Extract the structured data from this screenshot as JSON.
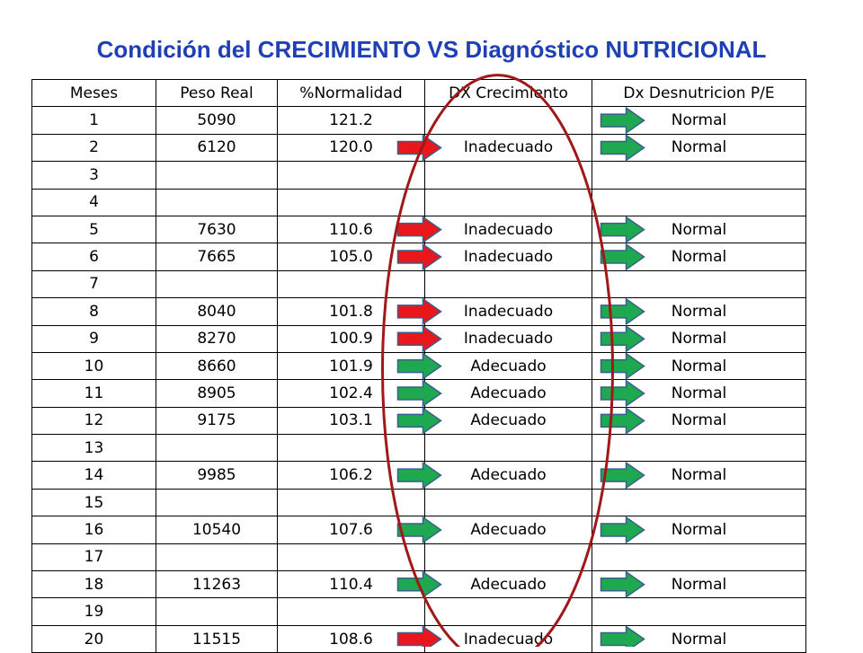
{
  "title": "Condición del CRECIMIENTO VS Diagnóstico NUTRICIONAL",
  "table": {
    "headers": [
      "Meses",
      "Peso Real",
      "%Normalidad",
      "DX Crecimiento",
      "Dx Desnutricion P/E"
    ],
    "rows": [
      {
        "mes": "1",
        "peso": "5090",
        "normalidad": "121.2",
        "dx_crecimiento": "",
        "dx_desnutricion": "Normal",
        "growth_arrow": "",
        "nutri_arrow": "green"
      },
      {
        "mes": "2",
        "peso": "6120",
        "normalidad": "120.0",
        "dx_crecimiento": "Inadecuado",
        "dx_desnutricion": "Normal",
        "growth_arrow": "red",
        "nutri_arrow": "green"
      },
      {
        "mes": "3",
        "peso": "",
        "normalidad": "",
        "dx_crecimiento": "",
        "dx_desnutricion": "",
        "growth_arrow": "",
        "nutri_arrow": ""
      },
      {
        "mes": "4",
        "peso": "",
        "normalidad": "",
        "dx_crecimiento": "",
        "dx_desnutricion": "",
        "growth_arrow": "",
        "nutri_arrow": ""
      },
      {
        "mes": "5",
        "peso": "7630",
        "normalidad": "110.6",
        "dx_crecimiento": "Inadecuado",
        "dx_desnutricion": "Normal",
        "growth_arrow": "red",
        "nutri_arrow": "green"
      },
      {
        "mes": "6",
        "peso": "7665",
        "normalidad": "105.0",
        "dx_crecimiento": "Inadecuado",
        "dx_desnutricion": "Normal",
        "growth_arrow": "red",
        "nutri_arrow": "green"
      },
      {
        "mes": "7",
        "peso": "",
        "normalidad": "",
        "dx_crecimiento": "",
        "dx_desnutricion": "",
        "growth_arrow": "",
        "nutri_arrow": ""
      },
      {
        "mes": "8",
        "peso": "8040",
        "normalidad": "101.8",
        "dx_crecimiento": "Inadecuado",
        "dx_desnutricion": "Normal",
        "growth_arrow": "red",
        "nutri_arrow": "green"
      },
      {
        "mes": "9",
        "peso": "8270",
        "normalidad": "100.9",
        "dx_crecimiento": "Inadecuado",
        "dx_desnutricion": "Normal",
        "growth_arrow": "red",
        "nutri_arrow": "green"
      },
      {
        "mes": "10",
        "peso": "8660",
        "normalidad": "101.9",
        "dx_crecimiento": "Adecuado",
        "dx_desnutricion": "Normal",
        "growth_arrow": "green",
        "nutri_arrow": "green"
      },
      {
        "mes": "11",
        "peso": "8905",
        "normalidad": "102.4",
        "dx_crecimiento": "Adecuado",
        "dx_desnutricion": "Normal",
        "growth_arrow": "green",
        "nutri_arrow": "green"
      },
      {
        "mes": "12",
        "peso": "9175",
        "normalidad": "103.1",
        "dx_crecimiento": "Adecuado",
        "dx_desnutricion": "Normal",
        "growth_arrow": "green",
        "nutri_arrow": "green"
      },
      {
        "mes": "13",
        "peso": "",
        "normalidad": "",
        "dx_crecimiento": "",
        "dx_desnutricion": "",
        "growth_arrow": "",
        "nutri_arrow": ""
      },
      {
        "mes": "14",
        "peso": "9985",
        "normalidad": "106.2",
        "dx_crecimiento": "Adecuado",
        "dx_desnutricion": "Normal",
        "growth_arrow": "green",
        "nutri_arrow": "green"
      },
      {
        "mes": "15",
        "peso": "",
        "normalidad": "",
        "dx_crecimiento": "",
        "dx_desnutricion": "",
        "growth_arrow": "",
        "nutri_arrow": ""
      },
      {
        "mes": "16",
        "peso": "10540",
        "normalidad": "107.6",
        "dx_crecimiento": "Adecuado",
        "dx_desnutricion": "Normal",
        "growth_arrow": "green",
        "nutri_arrow": "green"
      },
      {
        "mes": "17",
        "peso": "",
        "normalidad": "",
        "dx_crecimiento": "",
        "dx_desnutricion": "",
        "growth_arrow": "",
        "nutri_arrow": ""
      },
      {
        "mes": "18",
        "peso": "11263",
        "normalidad": "110.4",
        "dx_crecimiento": "Adecuado",
        "dx_desnutricion": "Normal",
        "growth_arrow": "green",
        "nutri_arrow": "green"
      },
      {
        "mes": "19",
        "peso": "",
        "normalidad": "",
        "dx_crecimiento": "",
        "dx_desnutricion": "",
        "growth_arrow": "",
        "nutri_arrow": ""
      },
      {
        "mes": "20",
        "peso": "11515",
        "normalidad": "108.6",
        "dx_crecimiento": "Inadecuado",
        "dx_desnutricion": "Normal",
        "growth_arrow": "red",
        "nutri_arrow": "green"
      }
    ]
  },
  "colors": {
    "title": "#1f3fb4",
    "arrow_red": "#e8171b",
    "arrow_green": "#1ea84f",
    "arrow_outline": "#3a5f8f",
    "ellipse": "#a01818"
  },
  "icons": {
    "growth_arrow": "right-arrow-icon",
    "nutri_arrow": "right-arrow-icon",
    "highlight": "ellipse-highlight"
  }
}
